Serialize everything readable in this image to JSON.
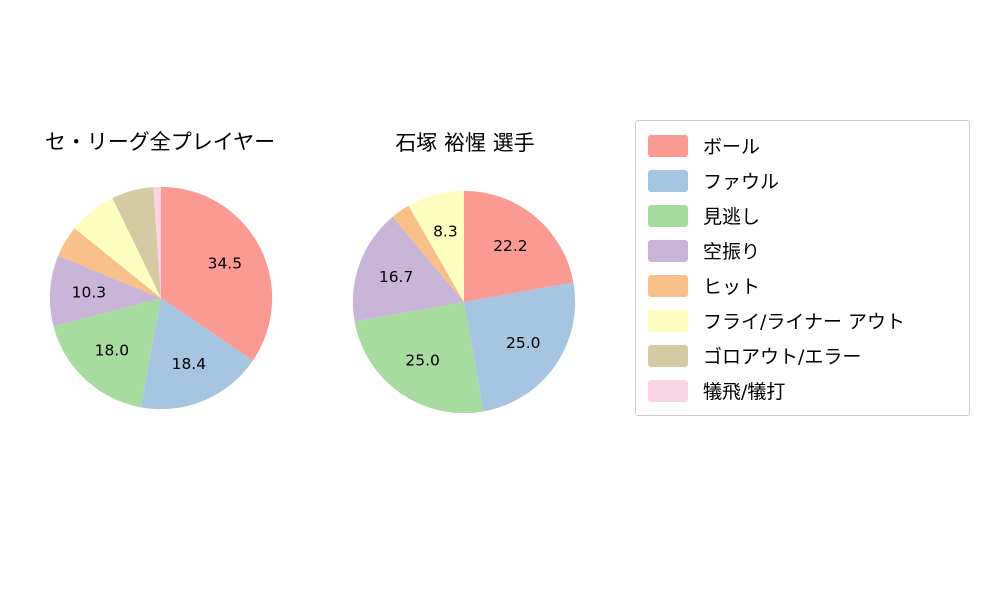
{
  "legend": {
    "items": [
      {
        "label": "ボール",
        "color": "#FB9A92"
      },
      {
        "label": "ファウル",
        "color": "#A6C5E0"
      },
      {
        "label": "見逃し",
        "color": "#A8DBA0"
      },
      {
        "label": "空振り",
        "color": "#C9B5D8"
      },
      {
        "label": "ヒット",
        "color": "#F9C189"
      },
      {
        "label": "フライ/ライナー アウト",
        "color": "#FEFEC0"
      },
      {
        "label": "ゴロアウト/エラー",
        "color": "#D4CAA4"
      },
      {
        "label": "犠飛/犠打",
        "color": "#F9D4E4"
      }
    ]
  },
  "chart_data": [
    {
      "type": "pie",
      "title": "セ・リーグ全プレイヤー",
      "labels": [
        "ボール",
        "ファウル",
        "見逃し",
        "空振り",
        "ヒット",
        "フライ/ライナー アウト",
        "ゴロアウト/エラー",
        "犠飛/犠打"
      ],
      "values": [
        34.5,
        18.4,
        18.0,
        10.3,
        4.6,
        7.0,
        6.1,
        1.1
      ],
      "pct_labels": [
        "34.5",
        "18.4",
        "18.0",
        "10.3",
        "",
        "",
        "",
        ""
      ],
      "colors": [
        "#FB9A92",
        "#A6C5E0",
        "#A8DBA0",
        "#C9B5D8",
        "#F9C189",
        "#FEFEC0",
        "#D4CAA4",
        "#F9D4E4"
      ],
      "start_angle_deg": 0,
      "direction": "clockwise",
      "label_distance": 0.65
    },
    {
      "type": "pie",
      "title": "石塚 裕惺  選手",
      "labels": [
        "ボール",
        "ファウル",
        "見逃し",
        "空振り",
        "ヒット",
        "フライ/ライナー アウト"
      ],
      "values": [
        22.2,
        25.0,
        25.0,
        16.7,
        2.8,
        8.3
      ],
      "pct_labels": [
        "22.2",
        "25.0",
        "25.0",
        "16.7",
        "",
        "8.3"
      ],
      "colors": [
        "#FB9A92",
        "#A6C5E0",
        "#A8DBA0",
        "#C9B5D8",
        "#F9C189",
        "#FEFEC0"
      ],
      "start_angle_deg": 0,
      "direction": "clockwise",
      "label_distance": 0.65
    }
  ]
}
